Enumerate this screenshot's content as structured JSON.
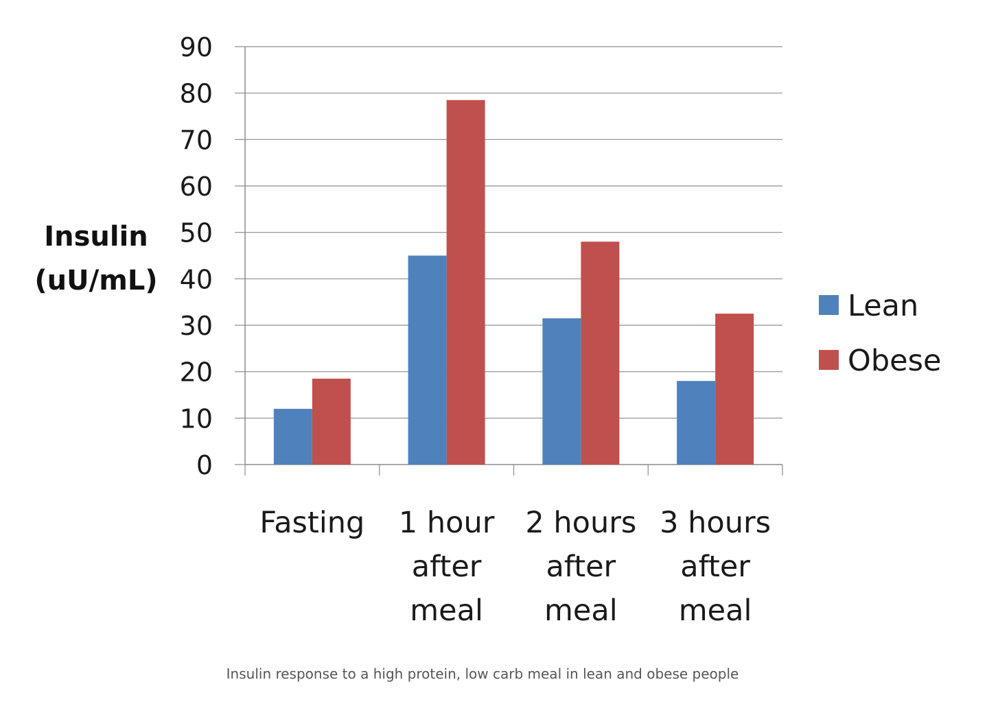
{
  "chart_data": {
    "type": "bar",
    "categories": [
      [
        "Fasting"
      ],
      [
        "1 hour",
        "after",
        "meal"
      ],
      [
        "2 hours",
        "after",
        "meal"
      ],
      [
        "3 hours",
        "after",
        "meal"
      ]
    ],
    "series": [
      {
        "name": "Lean",
        "color": "#4f81bd",
        "values": [
          12,
          45,
          31.5,
          18
        ]
      },
      {
        "name": "Obese",
        "color": "#c0504d",
        "values": [
          18.5,
          78.5,
          48,
          32.5
        ]
      }
    ],
    "ylabel": [
      "Insulin",
      "(uU/mL)"
    ],
    "ylim": [
      0,
      90
    ],
    "yticks": [
      0,
      10,
      20,
      30,
      40,
      50,
      60,
      70,
      80,
      90
    ],
    "grid": true,
    "legend_position": "right"
  },
  "caption": "Insulin response to a high protein, low carb meal in lean and obese people"
}
